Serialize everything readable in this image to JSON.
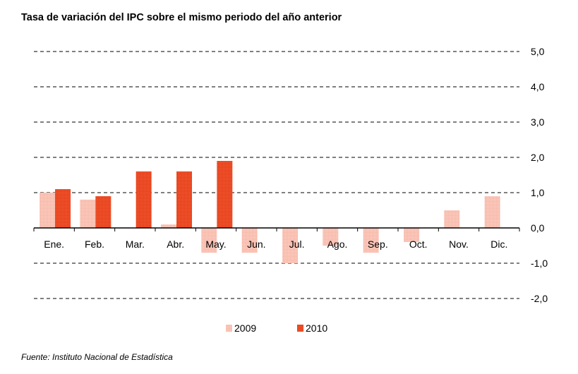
{
  "chart_data": {
    "type": "bar",
    "title": "Tasa de variación del IPC sobre el mismo periodo del año anterior",
    "source": "Fuente: Instituto Nacional de Estadística",
    "categories": [
      "Ene.",
      "Feb.",
      "Mar.",
      "Abr.",
      "May.",
      "Jun.",
      "Jul.",
      "Ago.",
      "Sep.",
      "Oct.",
      "Nov.",
      "Dic."
    ],
    "series": [
      {
        "name": "2009",
        "color": "#f7b8a8",
        "values": [
          1.0,
          0.8,
          0.0,
          0.1,
          -0.7,
          -0.7,
          -1.0,
          -0.5,
          -0.7,
          -0.4,
          0.5,
          0.9
        ]
      },
      {
        "name": "2010",
        "color": "#e8401c",
        "values": [
          1.1,
          0.9,
          1.6,
          1.6,
          1.9,
          null,
          null,
          null,
          null,
          null,
          null,
          null
        ]
      }
    ],
    "ylim": [
      -2.0,
      5.0
    ],
    "yticks": [
      5.0,
      4.0,
      3.0,
      2.0,
      1.0,
      0.0,
      -1.0,
      -2.0
    ],
    "ytick_labels": [
      "5,0",
      "4,0",
      "3,0",
      "2,0",
      "1,0",
      "0,0",
      "-1,0",
      "-2,0"
    ],
    "grid": true,
    "legend": "bottom"
  }
}
